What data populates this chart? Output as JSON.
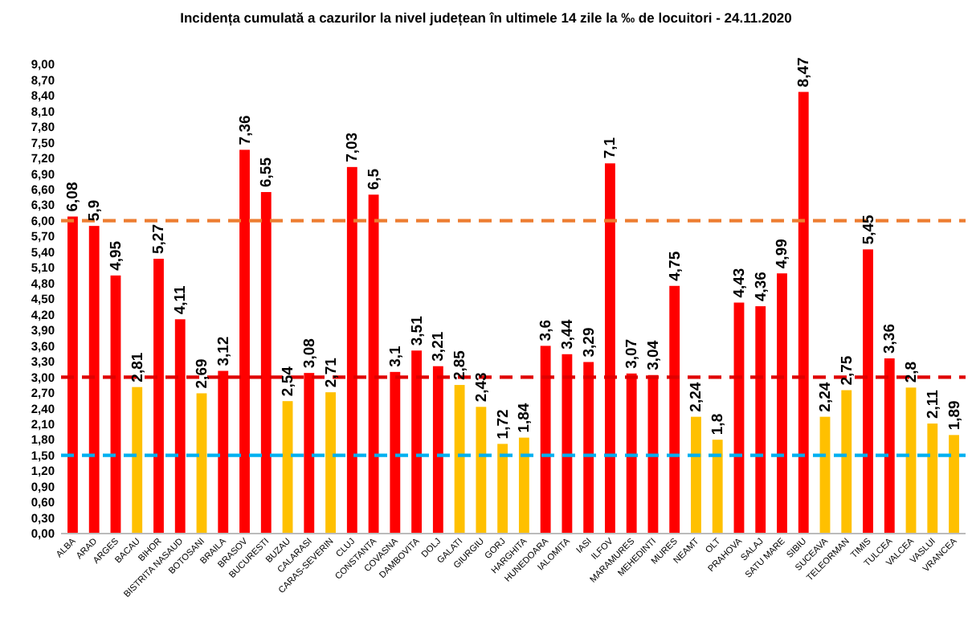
{
  "chart_data": {
    "type": "bar",
    "title": "Incidența cumulată a cazurilor la nivel județean în ultimele 14 zile la ‰ de locuitori - 24.11.2020",
    "categories": [
      "ALBA",
      "ARAD",
      "ARGES",
      "BACAU",
      "BIHOR",
      "BISTRITA NASAUD",
      "BOTOSANI",
      "BRAILA",
      "BRASOV",
      "BUCURESTI",
      "BUZAU",
      "CALARASI",
      "CARAS-SEVERIN",
      "CLUJ",
      "CONSTANTA",
      "COVASNA",
      "DAMBOVITA",
      "DOLJ",
      "GALATI",
      "GIURGIU",
      "GORJ",
      "HARGHITA",
      "HUNEDOARA",
      "IALOMITA",
      "IASI",
      "ILFOV",
      "MARAMURES",
      "MEHEDINTI",
      "MURES",
      "NEAMT",
      "OLT",
      "PRAHOVA",
      "SALAJ",
      "SATU MARE",
      "SIBIU",
      "SUCEAVA",
      "TELEORMAN",
      "TIMIS",
      "TULCEA",
      "VALCEA",
      "VASLUI",
      "VRANCEA"
    ],
    "values": [
      6.08,
      5.9,
      4.95,
      2.81,
      5.27,
      4.11,
      2.69,
      3.12,
      7.36,
      6.55,
      2.54,
      3.08,
      2.71,
      7.03,
      6.5,
      3.1,
      3.51,
      3.21,
      2.85,
      2.43,
      1.72,
      1.84,
      3.6,
      3.44,
      3.29,
      7.1,
      3.07,
      3.04,
      4.75,
      2.24,
      1.8,
      4.43,
      4.36,
      4.99,
      8.47,
      2.24,
      2.75,
      5.45,
      3.36,
      2.8,
      2.11,
      1.89
    ],
    "value_labels": [
      "6,08",
      "5,9",
      "4,95",
      "2,81",
      "5,27",
      "4,11",
      "2,69",
      "3,12",
      "7,36",
      "6,55",
      "2,54",
      "3,08",
      "2,71",
      "7,03",
      "6,5",
      "3,1",
      "3,51",
      "3,21",
      "2,85",
      "2,43",
      "1,72",
      "1,84",
      "3,6",
      "3,44",
      "3,29",
      "7,1",
      "3,07",
      "3,04",
      "4,75",
      "2,24",
      "1,8",
      "4,43",
      "4,36",
      "4,99",
      "8,47",
      "2,24",
      "2,75",
      "5,45",
      "3,36",
      "2,8",
      "2,11",
      "1,89"
    ],
    "colors": [
      "#ff0000",
      "#ff0000",
      "#ff0000",
      "#ffc000",
      "#ff0000",
      "#ff0000",
      "#ffc000",
      "#ff0000",
      "#ff0000",
      "#ff0000",
      "#ffc000",
      "#ff0000",
      "#ffc000",
      "#ff0000",
      "#ff0000",
      "#ff0000",
      "#ff0000",
      "#ff0000",
      "#ffc000",
      "#ffc000",
      "#ffc000",
      "#ffc000",
      "#ff0000",
      "#ff0000",
      "#ff0000",
      "#ff0000",
      "#ff0000",
      "#ff0000",
      "#ff0000",
      "#ffc000",
      "#ffc000",
      "#ff0000",
      "#ff0000",
      "#ff0000",
      "#ff0000",
      "#ffc000",
      "#ffc000",
      "#ff0000",
      "#ff0000",
      "#ffc000",
      "#ffc000",
      "#ffc000"
    ],
    "ylim": [
      0,
      9
    ],
    "yticks": [
      {
        "value": 0,
        "label": "0,00"
      },
      {
        "value": 0.3,
        "label": "0,30"
      },
      {
        "value": 0.6,
        "label": "0,60"
      },
      {
        "value": 0.9,
        "label": "0,90"
      },
      {
        "value": 1.2,
        "label": "1,20"
      },
      {
        "value": 1.5,
        "label": "1,50"
      },
      {
        "value": 1.8,
        "label": "1,80"
      },
      {
        "value": 2.1,
        "label": "2,10"
      },
      {
        "value": 2.4,
        "label": "2,40"
      },
      {
        "value": 2.7,
        "label": "2,70"
      },
      {
        "value": 3,
        "label": "3,00"
      },
      {
        "value": 3.3,
        "label": "3,30"
      },
      {
        "value": 3.6,
        "label": "3,60"
      },
      {
        "value": 3.9,
        "label": "3,90"
      },
      {
        "value": 4.2,
        "label": "4,20"
      },
      {
        "value": 4.5,
        "label": "4,50"
      },
      {
        "value": 4.8,
        "label": "4,80"
      },
      {
        "value": 5.1,
        "label": "5,10"
      },
      {
        "value": 5.4,
        "label": "5,40"
      },
      {
        "value": 5.7,
        "label": "5,70"
      },
      {
        "value": 6,
        "label": "6,00"
      },
      {
        "value": 6.3,
        "label": "6,30"
      },
      {
        "value": 6.6,
        "label": "6,60"
      },
      {
        "value": 6.9,
        "label": "6,90"
      },
      {
        "value": 7.2,
        "label": "7,20"
      },
      {
        "value": 7.5,
        "label": "7,50"
      },
      {
        "value": 7.8,
        "label": "7,80"
      },
      {
        "value": 8.1,
        "label": "8,10"
      },
      {
        "value": 8.4,
        "label": "8,40"
      },
      {
        "value": 8.7,
        "label": "8,70"
      },
      {
        "value": 9,
        "label": "9,00"
      }
    ],
    "ref_lines": [
      {
        "axis": "y",
        "value": 6,
        "color": "#ed7d31",
        "line_style": "dashed"
      },
      {
        "axis": "y",
        "value": 3,
        "color": "#e00000",
        "line_style": "dashed"
      },
      {
        "axis": "y",
        "value": 1.5,
        "color": "#00b0f0",
        "line_style": "dashed"
      }
    ]
  }
}
